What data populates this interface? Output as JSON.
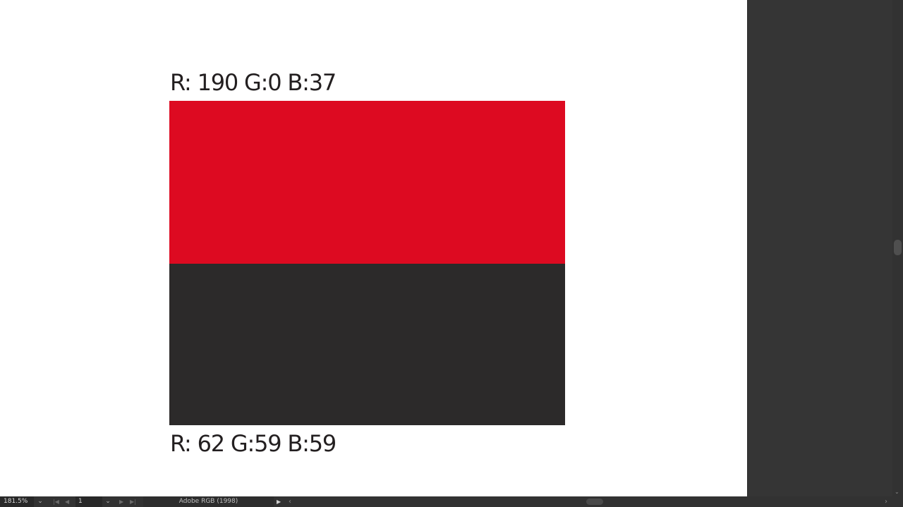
{
  "canvas": {
    "top_label": "R: 190 G:0 B:37",
    "bottom_label": "R: 62 G:59 B:59",
    "top_swatch_color": "#dd0a21",
    "bottom_swatch_color": "#2c2a2a"
  },
  "statusbar": {
    "zoom_value": "181.5%",
    "page_value": "1",
    "color_profile": "Adobe RGB (1998)"
  },
  "icons": {
    "zoom_dropdown": "chevron-down-icon",
    "first_page": "first-page-icon",
    "prev_page": "prev-page-icon",
    "page_dropdown": "chevron-down-icon",
    "next_page": "next-page-icon",
    "last_page": "last-page-icon",
    "profile_menu": "play-arrow-icon",
    "scroll_left": "chevron-left-icon",
    "scroll_right": "chevron-right-icon",
    "scroll_down": "chevron-down-icon"
  }
}
